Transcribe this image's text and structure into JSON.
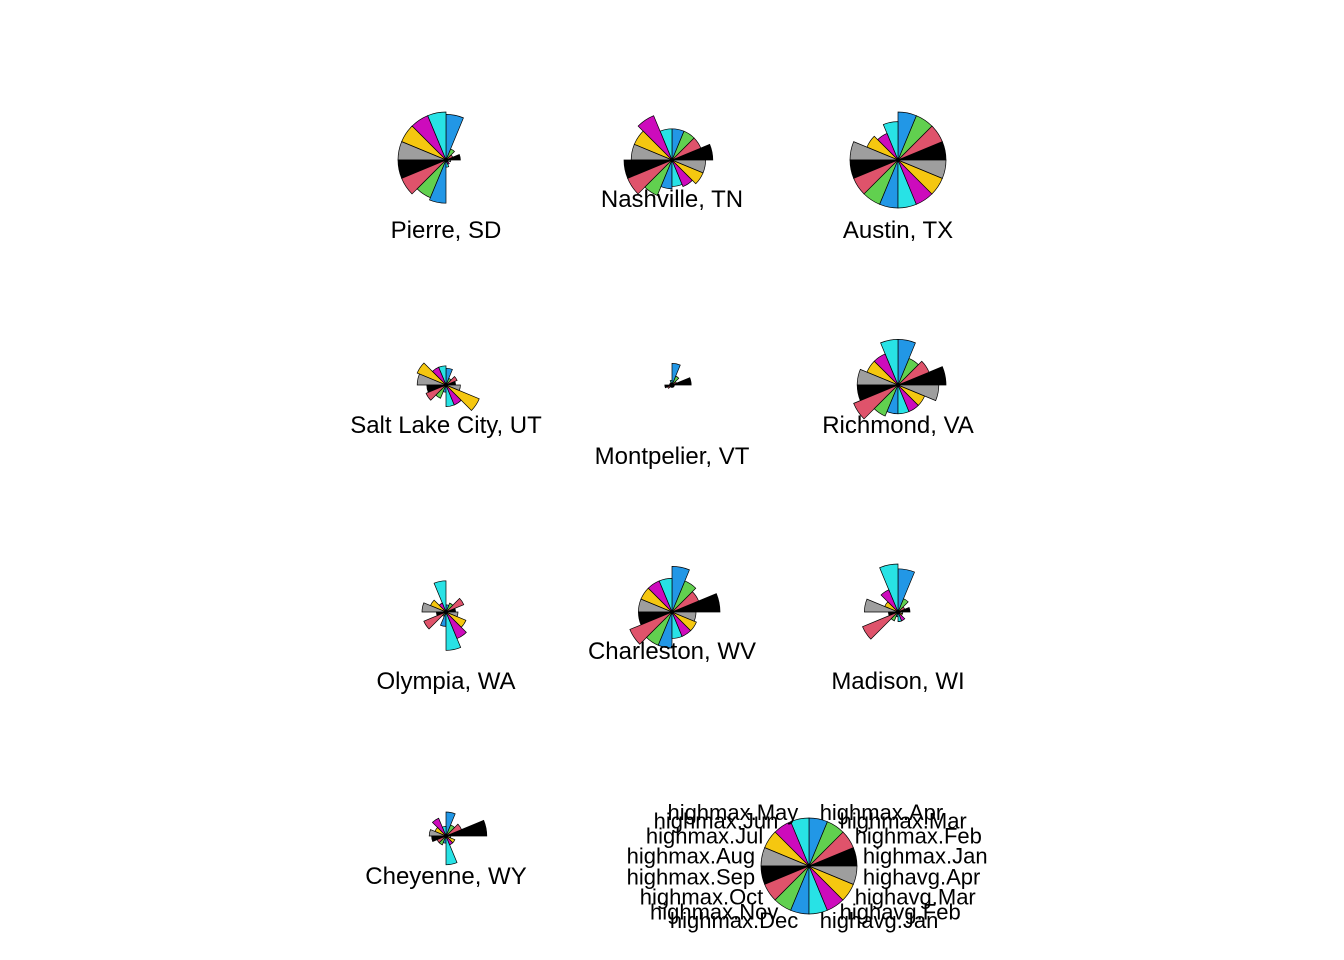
{
  "chart_data": {
    "type": "segment-star",
    "title": "",
    "variables": [
      "highmax.Jan",
      "highmax.Feb",
      "highmax.Mar",
      "highmax.Apr",
      "highmax.May",
      "highmax.Jun",
      "highmax.Jul",
      "highmax.Aug",
      "highmax.Sep",
      "highmax.Oct",
      "highmax.Nov",
      "highmax.Dec",
      "highavg.Jan",
      "highavg.Feb",
      "highavg.Mar",
      "highavg.Apr"
    ],
    "colors": [
      "#000000",
      "#DF536B",
      "#61D04F",
      "#2297E6",
      "#28E2E5",
      "#CD0BBC",
      "#F5C710",
      "#9E9E9E",
      "#000000",
      "#DF536B",
      "#61D04F",
      "#2297E6",
      "#28E2E5",
      "#CD0BBC",
      "#F5C710",
      "#9E9E9E"
    ],
    "series": [
      {
        "name": "Pierre, SD",
        "values": [
          0.3,
          0.15,
          0.25,
          0.95,
          1.0,
          1.0,
          1.0,
          1.0,
          1.0,
          1.0,
          0.85,
          0.9,
          0.15,
          0.1,
          0.05,
          0.1
        ]
      },
      {
        "name": "Nashville, TN",
        "values": [
          0.85,
          0.65,
          0.65,
          0.65,
          0.65,
          1.0,
          0.85,
          0.85,
          1.0,
          1.0,
          0.8,
          0.6,
          0.55,
          0.6,
          0.7,
          0.7
        ]
      },
      {
        "name": "Austin, TX",
        "values": [
          1.0,
          1.0,
          1.0,
          1.0,
          0.8,
          0.6,
          0.7,
          1.0,
          1.0,
          1.0,
          1.0,
          1.0,
          1.0,
          1.0,
          1.0,
          1.0
        ]
      },
      {
        "name": "Salt Lake City, UT",
        "values": [
          0.2,
          0.25,
          0.15,
          0.35,
          0.4,
          0.4,
          0.65,
          0.6,
          0.4,
          0.45,
          0.3,
          0.15,
          0.45,
          0.45,
          0.75,
          0.3
        ]
      },
      {
        "name": "Montpelier, VT",
        "values": [
          0.4,
          0.1,
          0.2,
          0.45,
          0.1,
          0.05,
          0.05,
          0.05,
          0.15,
          0.1,
          0.05,
          0.05,
          0.05,
          0.05,
          0.05,
          0.05
        ]
      },
      {
        "name": "Richmond, VA",
        "values": [
          1.0,
          0.7,
          0.6,
          0.95,
          0.95,
          0.7,
          0.7,
          0.85,
          0.85,
          1.0,
          0.7,
          0.6,
          0.6,
          0.6,
          0.6,
          0.85
        ]
      },
      {
        "name": "Olympia, WA",
        "values": [
          0.2,
          0.4,
          0.2,
          0.15,
          0.65,
          0.2,
          0.35,
          0.5,
          0.2,
          0.5,
          0.1,
          0.3,
          0.8,
          0.6,
          0.45,
          0.25
        ]
      },
      {
        "name": "Charleston, WV",
        "values": [
          1.0,
          0.6,
          0.7,
          0.95,
          0.7,
          0.7,
          0.7,
          0.7,
          0.7,
          0.95,
          0.75,
          0.75,
          0.55,
          0.55,
          0.55,
          0.5
        ]
      },
      {
        "name": "Madison, WI",
        "values": [
          0.25,
          0.15,
          0.3,
          0.9,
          1.0,
          0.5,
          0.3,
          0.7,
          0.2,
          0.8,
          0.2,
          0.1,
          0.2,
          0.2,
          0.1,
          0.1
        ]
      },
      {
        "name": "Cheyenne, WY",
        "values": [
          0.85,
          0.35,
          0.25,
          0.5,
          0.2,
          0.4,
          0.25,
          0.35,
          0.3,
          0.2,
          0.2,
          0.15,
          0.6,
          0.2,
          0.2,
          0.1
        ]
      }
    ],
    "key_labels": [
      "highmax.Jan",
      "highmax.Feb",
      "highmax.Mar",
      "highmax.Apr",
      "highmax.May",
      "highmax.Jun",
      "highmax.Jul",
      "highmax.Aug",
      "highmax.Sep",
      "highmax.Oct",
      "highmax.Nov",
      "highmax.Dec",
      "highavg.Jan",
      "highavg.Feb",
      "highavg.Mar",
      "highavg.Apr"
    ],
    "legend": "bottom-right"
  }
}
